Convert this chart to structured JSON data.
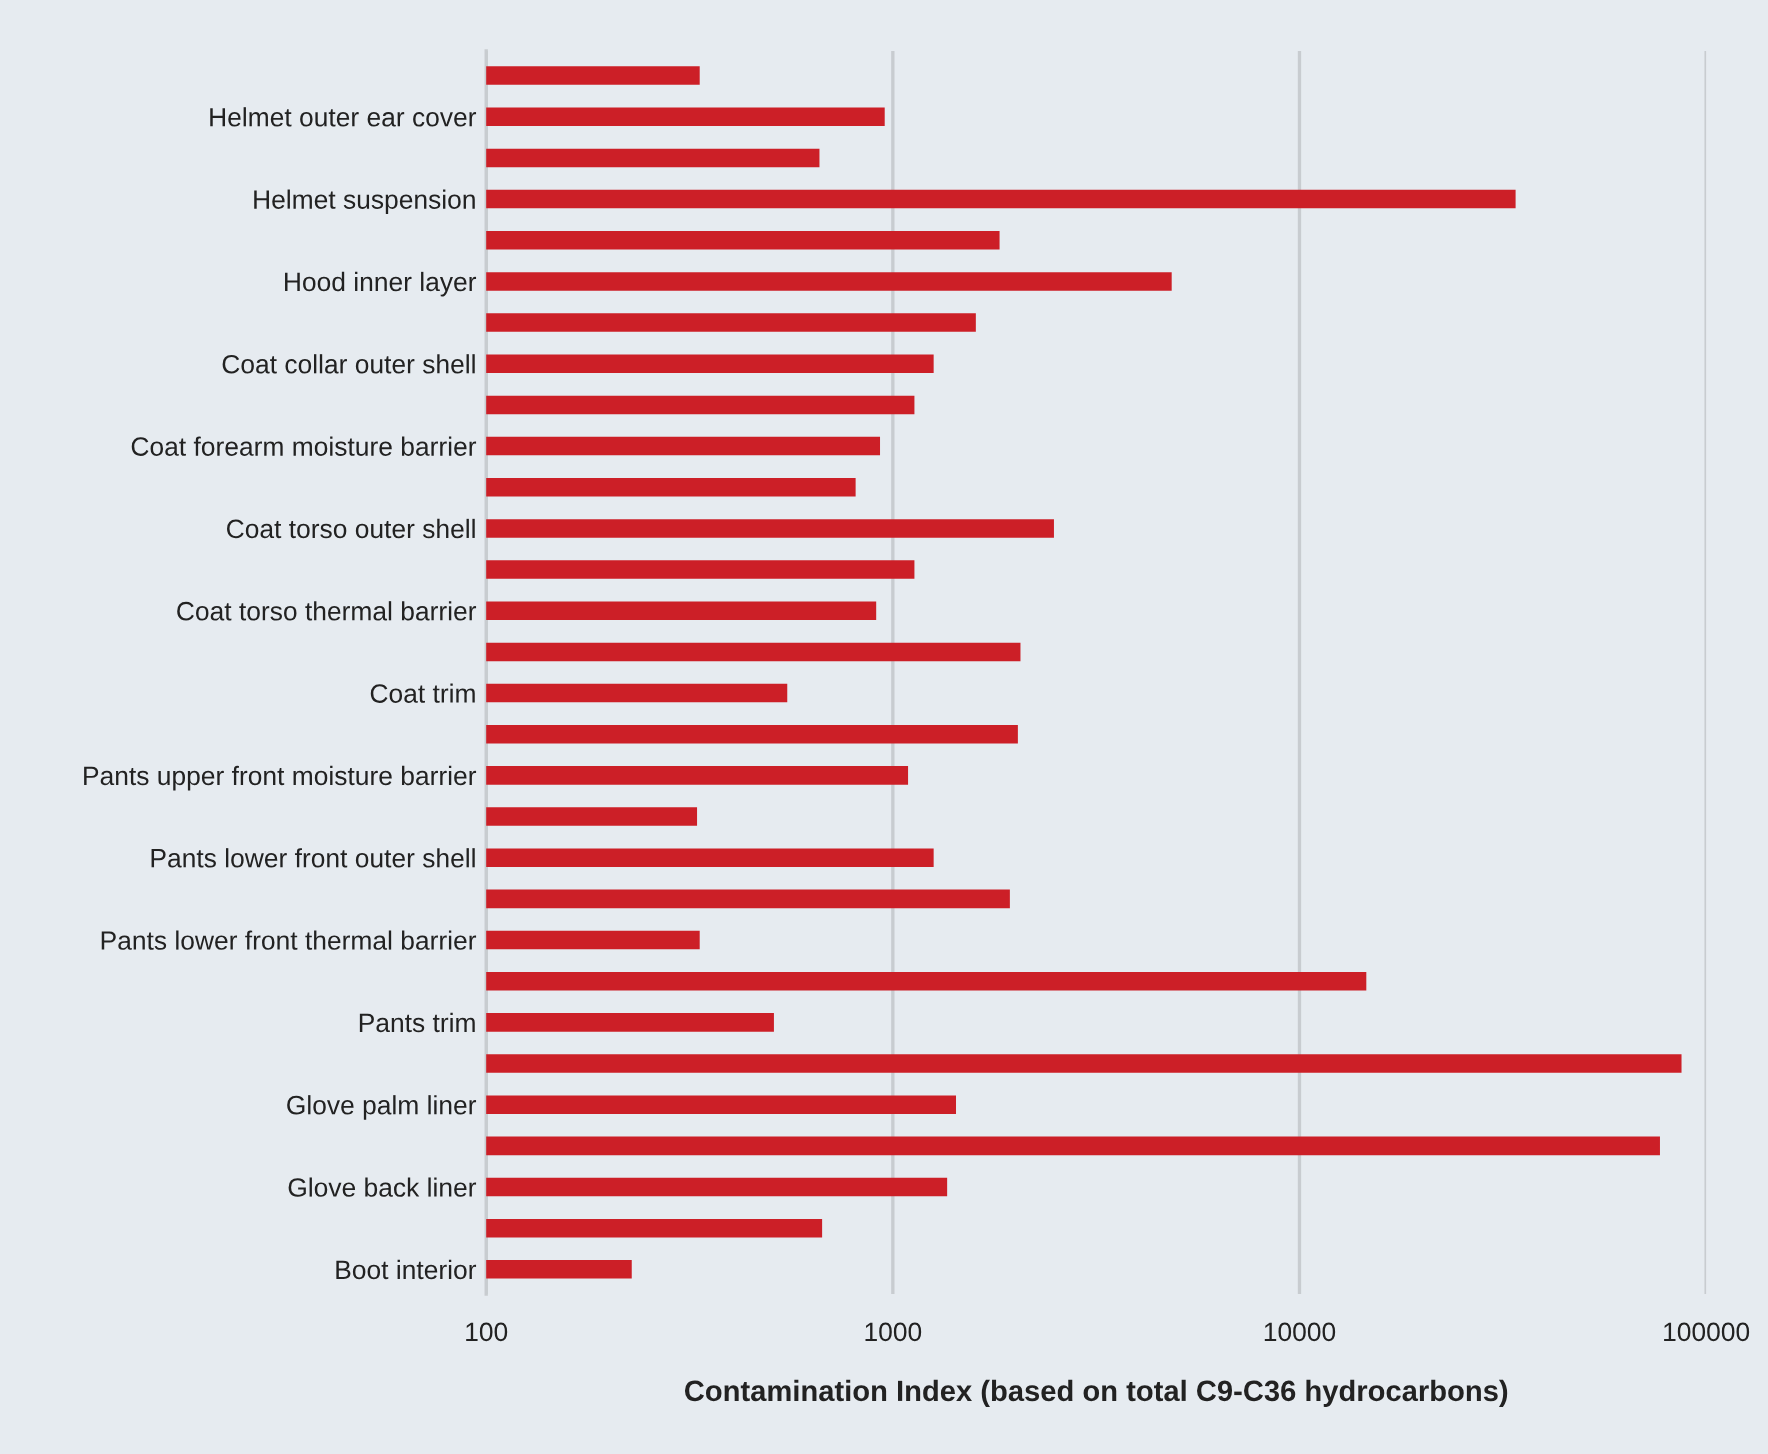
{
  "chart_data": {
    "type": "bar",
    "orientation": "horizontal",
    "log": "x",
    "xlabel": "Contamination Index (based on total C9-C36 hydrocarbons)",
    "categories": [
      null,
      "Helmet outer ear cover",
      null,
      "Helmet suspension",
      null,
      "Hood inner layer",
      null,
      "Coat collar outer shell",
      null,
      "Coat forearm moisture barrier",
      null,
      "Coat torso outer shell",
      null,
      "Coat torso thermal barrier",
      null,
      "Coat trim",
      null,
      "Pants upper front moisture barrier",
      null,
      "Pants lower front outer shell",
      null,
      "Pants lower front thermal barrier",
      null,
      "Pants trim",
      null,
      "Glove palm liner",
      null,
      "Glove back liner",
      null,
      "Boot interior"
    ],
    "values": [
      335,
      955,
      660,
      34000,
      1830,
      4850,
      1600,
      1260,
      1130,
      930,
      810,
      2490,
      1130,
      910,
      2060,
      550,
      2030,
      1090,
      330,
      1260,
      1940,
      335,
      14600,
      510,
      87000,
      1430,
      77000,
      1360,
      670,
      228
    ],
    "color": "#cc1f27",
    "xlim": [
      100,
      100000
    ],
    "xticks": [
      100,
      1000,
      10000,
      100000
    ],
    "grid": "x",
    "legend": false
  }
}
